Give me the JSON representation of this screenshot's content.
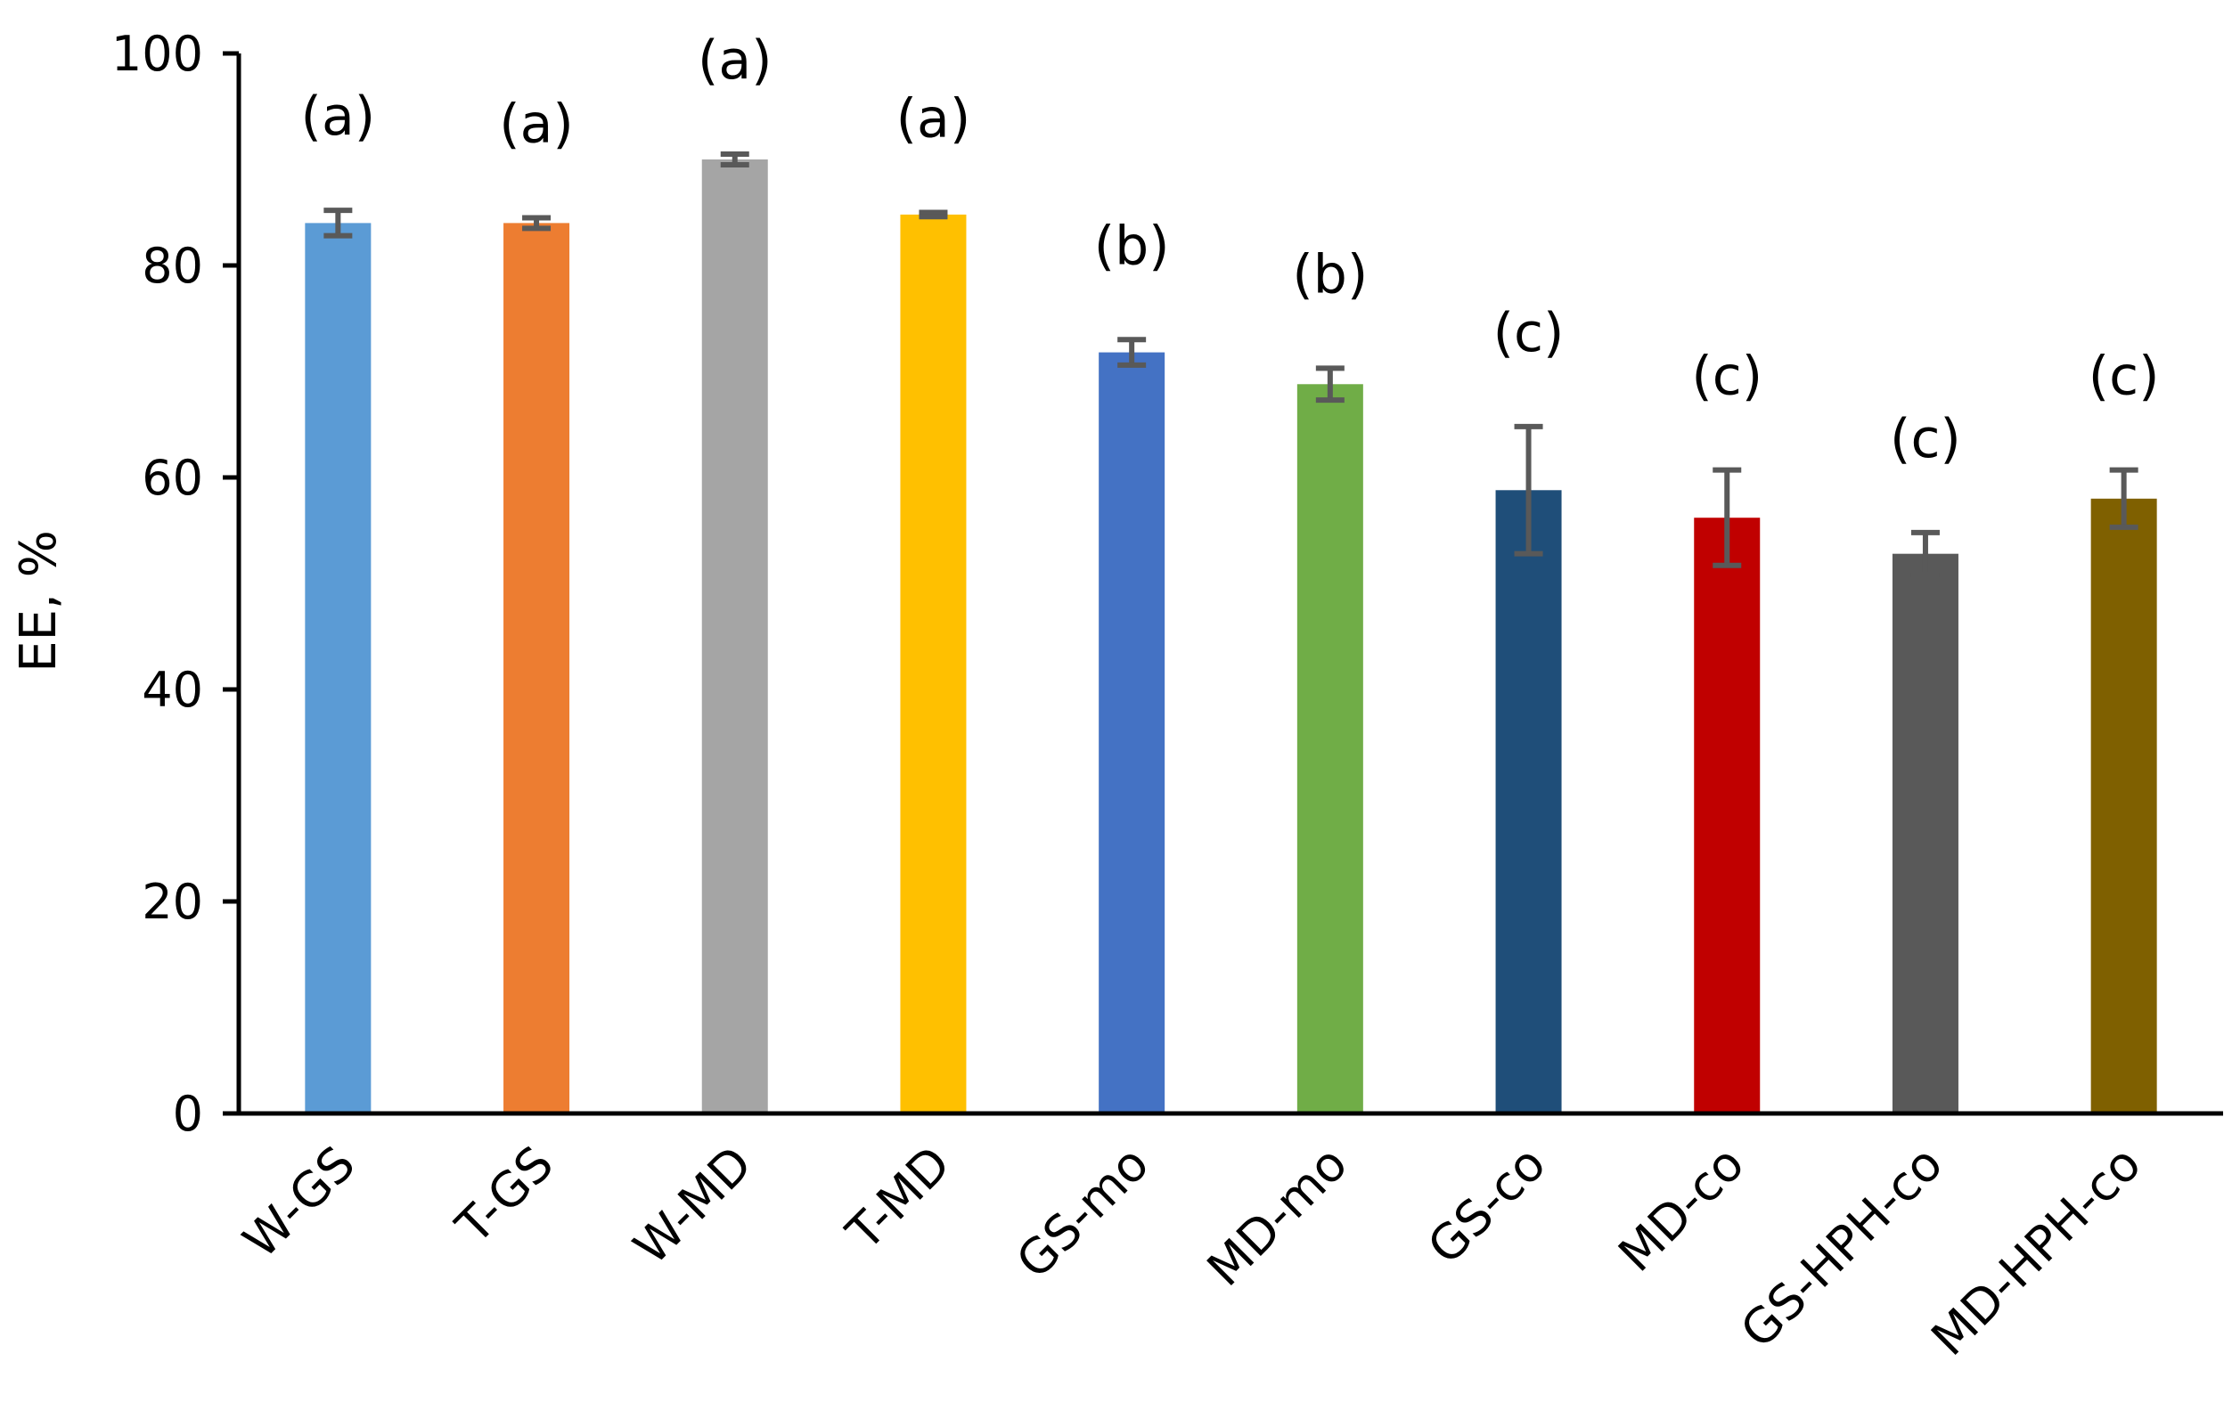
{
  "chart_data": {
    "type": "bar",
    "ylabel": "EE, %",
    "ylim": [
      0,
      100
    ],
    "yticks": [
      0,
      20,
      40,
      60,
      80,
      100
    ],
    "grid": false,
    "legend": "none",
    "categories": [
      "W-GS",
      "T-GS",
      "W-MD",
      "T-MD",
      "GS-mo",
      "MD-mo",
      "GS-co",
      "MD-co",
      "GS-HPH-co",
      "MD-HPH-co"
    ],
    "values": [
      84.0,
      84.0,
      90.0,
      84.8,
      71.8,
      68.8,
      58.8,
      56.2,
      52.8,
      58.0
    ],
    "errors": [
      1.2,
      0.5,
      0.5,
      0.2,
      1.2,
      1.5,
      6.0,
      4.5,
      2.0,
      2.7
    ],
    "group_labels": [
      "(a)",
      "(a)",
      "(a)",
      "(a)",
      "(b)",
      "(b)",
      "(c)",
      "(c)",
      "(c)",
      "(c)"
    ],
    "colors": [
      "#5B9BD5",
      "#ED7D31",
      "#A5A5A5",
      "#FFC000",
      "#4472C4",
      "#70AD47",
      "#1F4E79",
      "#C00000",
      "#595959",
      "#7F6000"
    ],
    "error_bar_color": "#595959"
  }
}
